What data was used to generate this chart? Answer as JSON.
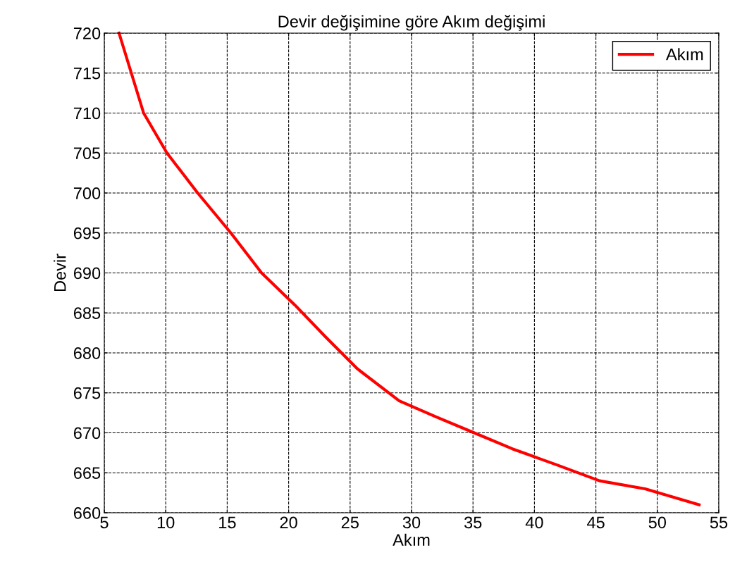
{
  "chart_data": {
    "type": "line",
    "title": "Devir değişimine göre Akım değişimi",
    "xlabel": "Akım",
    "ylabel": "Devir",
    "x": [
      6.2,
      8.2,
      10.1,
      12.6,
      15.3,
      17.8,
      20.5,
      23.0,
      25.6,
      29.0,
      32.0,
      35.1,
      38.2,
      41.8,
      45.3,
      49.0,
      53.4
    ],
    "series": [
      {
        "name": "Akım",
        "color": "#ff0000",
        "values": [
          720,
          710,
          705,
          700,
          695,
          690,
          686,
          682,
          678,
          674,
          672,
          670,
          668,
          666,
          664,
          663,
          661
        ]
      }
    ],
    "xlim": [
      5,
      55
    ],
    "xticks": [
      5,
      10,
      15,
      20,
      25,
      30,
      35,
      40,
      45,
      50,
      55
    ],
    "ylim": [
      660,
      720
    ],
    "yticks": [
      660,
      665,
      670,
      675,
      680,
      685,
      690,
      695,
      700,
      705,
      710,
      715,
      720
    ],
    "grid": true,
    "legend": "top right",
    "line_style": "solid",
    "marker": "none"
  }
}
